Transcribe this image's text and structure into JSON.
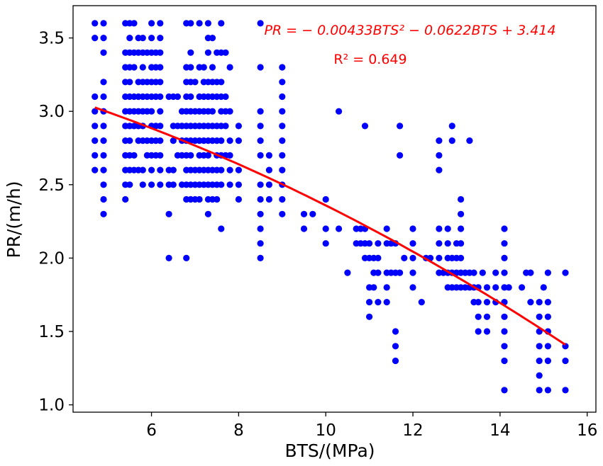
{
  "chart_data": {
    "type": "scatter",
    "xlabel": "BTS/(MPa)",
    "ylabel": "PR/(m/h)",
    "xlim": [
      4.2,
      16.2
    ],
    "ylim": [
      0.95,
      3.72
    ],
    "x_ticks": [
      6,
      8,
      10,
      12,
      14,
      16
    ],
    "y_ticks": [
      1.0,
      1.5,
      2.0,
      2.5,
      3.0,
      3.5
    ],
    "x_tick_labels": [
      "6",
      "8",
      "10",
      "12",
      "14",
      "16"
    ],
    "y_tick_labels": [
      "1.0",
      "1.5",
      "2.0",
      "2.5",
      "3.0",
      "3.5"
    ],
    "grid": false,
    "annotations": {
      "equation": "PR = − 0.00433BTS² − 0.0622BTS + 3.414",
      "r_squared": "R² = 0.649"
    },
    "colors": {
      "points": "#0000ff",
      "fit_line": "#ff0000",
      "annotation": "#ff0000"
    },
    "fit": {
      "a": -0.00433,
      "b": -0.0622,
      "c": 3.414,
      "x_range": [
        4.7,
        15.5
      ]
    },
    "points": [
      [
        4.7,
        3.6
      ],
      [
        4.7,
        3.5
      ],
      [
        4.7,
        3.1
      ],
      [
        4.7,
        3.0
      ],
      [
        4.7,
        2.9
      ],
      [
        4.7,
        2.8
      ],
      [
        4.7,
        2.7
      ],
      [
        4.7,
        2.6
      ],
      [
        4.9,
        3.6
      ],
      [
        4.9,
        3.5
      ],
      [
        4.9,
        3.4
      ],
      [
        4.9,
        3.2
      ],
      [
        4.9,
        3.1
      ],
      [
        4.9,
        3.0
      ],
      [
        4.9,
        2.9
      ],
      [
        4.9,
        2.8
      ],
      [
        4.9,
        2.7
      ],
      [
        4.9,
        2.6
      ],
      [
        4.9,
        2.5
      ],
      [
        4.9,
        2.4
      ],
      [
        4.9,
        2.3
      ],
      [
        5.4,
        3.6
      ],
      [
        5.4,
        3.4
      ],
      [
        5.4,
        3.3
      ],
      [
        5.4,
        3.2
      ],
      [
        5.4,
        3.1
      ],
      [
        5.4,
        3.0
      ],
      [
        5.4,
        2.9
      ],
      [
        5.4,
        2.8
      ],
      [
        5.4,
        2.7
      ],
      [
        5.4,
        2.6
      ],
      [
        5.4,
        2.5
      ],
      [
        5.4,
        2.4
      ],
      [
        5.5,
        3.6
      ],
      [
        5.5,
        3.5
      ],
      [
        5.5,
        3.4
      ],
      [
        5.5,
        3.3
      ],
      [
        5.5,
        3.2
      ],
      [
        5.5,
        3.1
      ],
      [
        5.5,
        3.0
      ],
      [
        5.5,
        2.9
      ],
      [
        5.5,
        2.8
      ],
      [
        5.5,
        2.7
      ],
      [
        5.5,
        2.6
      ],
      [
        5.5,
        2.5
      ],
      [
        5.6,
        3.6
      ],
      [
        5.6,
        3.4
      ],
      [
        5.6,
        3.3
      ],
      [
        5.6,
        3.1
      ],
      [
        5.6,
        3.0
      ],
      [
        5.6,
        2.9
      ],
      [
        5.6,
        2.7
      ],
      [
        5.6,
        2.6
      ],
      [
        5.7,
        3.5
      ],
      [
        5.7,
        3.4
      ],
      [
        5.7,
        3.2
      ],
      [
        5.7,
        3.1
      ],
      [
        5.7,
        3.0
      ],
      [
        5.7,
        2.9
      ],
      [
        5.7,
        2.8
      ],
      [
        5.7,
        2.6
      ],
      [
        5.8,
        3.5
      ],
      [
        5.8,
        3.4
      ],
      [
        5.8,
        3.3
      ],
      [
        5.8,
        3.2
      ],
      [
        5.8,
        3.1
      ],
      [
        5.8,
        3.0
      ],
      [
        5.8,
        2.9
      ],
      [
        5.8,
        2.8
      ],
      [
        5.8,
        2.6
      ],
      [
        5.8,
        2.5
      ],
      [
        5.9,
        3.4
      ],
      [
        5.9,
        3.2
      ],
      [
        5.9,
        3.1
      ],
      [
        5.9,
        3.0
      ],
      [
        5.9,
        2.8
      ],
      [
        5.9,
        2.7
      ],
      [
        6.0,
        3.6
      ],
      [
        6.0,
        3.5
      ],
      [
        6.0,
        3.4
      ],
      [
        6.0,
        3.3
      ],
      [
        6.0,
        3.2
      ],
      [
        6.0,
        3.1
      ],
      [
        6.0,
        3.0
      ],
      [
        6.0,
        2.9
      ],
      [
        6.0,
        2.8
      ],
      [
        6.0,
        2.7
      ],
      [
        6.0,
        2.6
      ],
      [
        6.0,
        2.5
      ],
      [
        6.1,
        3.4
      ],
      [
        6.1,
        3.3
      ],
      [
        6.1,
        3.2
      ],
      [
        6.1,
        3.1
      ],
      [
        6.1,
        2.9
      ],
      [
        6.1,
        2.8
      ],
      [
        6.1,
        2.7
      ],
      [
        6.2,
        3.6
      ],
      [
        6.2,
        3.5
      ],
      [
        6.2,
        3.4
      ],
      [
        6.2,
        3.3
      ],
      [
        6.2,
        3.2
      ],
      [
        6.2,
        3.1
      ],
      [
        6.2,
        3.0
      ],
      [
        6.2,
        2.9
      ],
      [
        6.2,
        2.8
      ],
      [
        6.2,
        2.7
      ],
      [
        6.2,
        2.6
      ],
      [
        6.2,
        2.5
      ],
      [
        6.4,
        3.1
      ],
      [
        6.4,
        2.6
      ],
      [
        6.4,
        2.5
      ],
      [
        6.4,
        2.3
      ],
      [
        6.4,
        2.0
      ],
      [
        6.5,
        3.1
      ],
      [
        6.5,
        2.9
      ],
      [
        6.5,
        2.8
      ],
      [
        6.5,
        2.6
      ],
      [
        6.5,
        2.5
      ],
      [
        6.6,
        3.1
      ],
      [
        6.6,
        2.9
      ],
      [
        6.6,
        2.7
      ],
      [
        6.7,
        3.0
      ],
      [
        6.7,
        2.9
      ],
      [
        6.7,
        2.8
      ],
      [
        6.7,
        2.7
      ],
      [
        6.7,
        2.5
      ],
      [
        6.8,
        3.6
      ],
      [
        6.8,
        3.3
      ],
      [
        6.8,
        3.2
      ],
      [
        6.8,
        3.1
      ],
      [
        6.8,
        3.0
      ],
      [
        6.8,
        2.9
      ],
      [
        6.8,
        2.8
      ],
      [
        6.8,
        2.7
      ],
      [
        6.8,
        2.6
      ],
      [
        6.8,
        2.5
      ],
      [
        6.8,
        2.4
      ],
      [
        6.8,
        2.0
      ],
      [
        6.9,
        3.6
      ],
      [
        6.9,
        3.4
      ],
      [
        6.9,
        3.3
      ],
      [
        6.9,
        3.2
      ],
      [
        6.9,
        3.1
      ],
      [
        6.9,
        3.0
      ],
      [
        6.9,
        2.9
      ],
      [
        6.9,
        2.8
      ],
      [
        6.9,
        2.7
      ],
      [
        6.9,
        2.6
      ],
      [
        6.9,
        2.5
      ],
      [
        6.9,
        2.4
      ],
      [
        7.0,
        3.2
      ],
      [
        7.0,
        3.0
      ],
      [
        7.0,
        2.9
      ],
      [
        7.0,
        2.8
      ],
      [
        7.0,
        2.6
      ],
      [
        7.0,
        2.5
      ],
      [
        7.0,
        2.4
      ],
      [
        7.1,
        3.6
      ],
      [
        7.1,
        3.3
      ],
      [
        7.1,
        3.1
      ],
      [
        7.1,
        3.0
      ],
      [
        7.1,
        2.9
      ],
      [
        7.1,
        2.8
      ],
      [
        7.1,
        2.7
      ],
      [
        7.1,
        2.6
      ],
      [
        7.1,
        2.5
      ],
      [
        7.1,
        2.4
      ],
      [
        7.2,
        3.3
      ],
      [
        7.2,
        3.2
      ],
      [
        7.2,
        3.1
      ],
      [
        7.2,
        3.0
      ],
      [
        7.2,
        2.9
      ],
      [
        7.2,
        2.8
      ],
      [
        7.2,
        2.7
      ],
      [
        7.2,
        2.6
      ],
      [
        7.2,
        2.5
      ],
      [
        7.3,
        3.6
      ],
      [
        7.3,
        3.5
      ],
      [
        7.3,
        3.4
      ],
      [
        7.3,
        3.2
      ],
      [
        7.3,
        3.1
      ],
      [
        7.3,
        3.0
      ],
      [
        7.3,
        2.9
      ],
      [
        7.3,
        2.8
      ],
      [
        7.3,
        2.7
      ],
      [
        7.3,
        2.6
      ],
      [
        7.3,
        2.5
      ],
      [
        7.3,
        2.4
      ],
      [
        7.3,
        2.3
      ],
      [
        7.4,
        3.5
      ],
      [
        7.4,
        3.3
      ],
      [
        7.4,
        3.2
      ],
      [
        7.4,
        3.1
      ],
      [
        7.4,
        3.0
      ],
      [
        7.4,
        2.9
      ],
      [
        7.4,
        2.8
      ],
      [
        7.4,
        2.6
      ],
      [
        7.4,
        2.5
      ],
      [
        7.4,
        2.4
      ],
      [
        7.5,
        3.4
      ],
      [
        7.5,
        3.2
      ],
      [
        7.5,
        3.1
      ],
      [
        7.5,
        2.9
      ],
      [
        7.5,
        2.8
      ],
      [
        7.5,
        2.7
      ],
      [
        7.5,
        2.6
      ],
      [
        7.5,
        2.5
      ],
      [
        7.5,
        2.4
      ],
      [
        7.6,
        3.6
      ],
      [
        7.6,
        3.4
      ],
      [
        7.6,
        3.2
      ],
      [
        7.6,
        3.1
      ],
      [
        7.6,
        3.0
      ],
      [
        7.6,
        2.9
      ],
      [
        7.6,
        2.8
      ],
      [
        7.6,
        2.7
      ],
      [
        7.6,
        2.6
      ],
      [
        7.6,
        2.5
      ],
      [
        7.6,
        2.2
      ],
      [
        7.7,
        3.4
      ],
      [
        7.7,
        3.1
      ],
      [
        7.7,
        3.0
      ],
      [
        7.7,
        2.9
      ],
      [
        7.7,
        2.7
      ],
      [
        7.8,
        3.3
      ],
      [
        7.8,
        3.0
      ],
      [
        7.8,
        2.8
      ],
      [
        7.8,
        2.7
      ],
      [
        7.8,
        2.6
      ],
      [
        7.8,
        2.5
      ],
      [
        8.0,
        2.9
      ],
      [
        8.0,
        2.8
      ],
      [
        8.0,
        2.6
      ],
      [
        8.0,
        2.5
      ],
      [
        8.0,
        2.4
      ],
      [
        8.5,
        3.6
      ],
      [
        8.5,
        3.3
      ],
      [
        8.5,
        3.0
      ],
      [
        8.5,
        2.9
      ],
      [
        8.5,
        2.8
      ],
      [
        8.5,
        2.7
      ],
      [
        8.5,
        2.5
      ],
      [
        8.5,
        2.4
      ],
      [
        8.5,
        2.3
      ],
      [
        8.5,
        2.2
      ],
      [
        8.5,
        2.1
      ],
      [
        8.5,
        2.0
      ],
      [
        8.7,
        2.7
      ],
      [
        8.7,
        2.6
      ],
      [
        8.7,
        2.5
      ],
      [
        8.7,
        2.4
      ],
      [
        9.0,
        3.3
      ],
      [
        9.0,
        3.2
      ],
      [
        9.0,
        3.1
      ],
      [
        9.0,
        3.0
      ],
      [
        9.0,
        2.9
      ],
      [
        9.0,
        2.8
      ],
      [
        9.0,
        2.7
      ],
      [
        9.0,
        2.6
      ],
      [
        9.0,
        2.5
      ],
      [
        9.0,
        2.4
      ],
      [
        9.0,
        2.3
      ],
      [
        9.5,
        2.3
      ],
      [
        9.5,
        2.2
      ],
      [
        9.7,
        2.3
      ],
      [
        10.0,
        2.4
      ],
      [
        10.0,
        2.2
      ],
      [
        10.0,
        2.1
      ],
      [
        10.3,
        3.0
      ],
      [
        10.3,
        2.2
      ],
      [
        10.5,
        1.9
      ],
      [
        10.7,
        2.2
      ],
      [
        10.7,
        2.1
      ],
      [
        10.8,
        2.2
      ],
      [
        10.8,
        2.1
      ],
      [
        10.9,
        2.9
      ],
      [
        10.9,
        2.2
      ],
      [
        10.9,
        2.1
      ],
      [
        10.9,
        2.0
      ],
      [
        11.0,
        2.1
      ],
      [
        11.0,
        2.0
      ],
      [
        11.0,
        1.8
      ],
      [
        11.0,
        1.7
      ],
      [
        11.0,
        1.6
      ],
      [
        11.1,
        2.0
      ],
      [
        11.1,
        1.9
      ],
      [
        11.1,
        1.8
      ],
      [
        11.2,
        2.1
      ],
      [
        11.2,
        2.0
      ],
      [
        11.2,
        1.9
      ],
      [
        11.2,
        1.7
      ],
      [
        11.4,
        2.2
      ],
      [
        11.4,
        2.1
      ],
      [
        11.4,
        1.9
      ],
      [
        11.4,
        1.8
      ],
      [
        11.4,
        1.7
      ],
      [
        11.5,
        2.1
      ],
      [
        11.5,
        1.9
      ],
      [
        11.6,
        2.1
      ],
      [
        11.6,
        1.9
      ],
      [
        11.6,
        1.5
      ],
      [
        11.6,
        1.4
      ],
      [
        11.6,
        1.3
      ],
      [
        11.7,
        2.9
      ],
      [
        11.7,
        2.7
      ],
      [
        11.7,
        1.9
      ],
      [
        11.8,
        2.0
      ],
      [
        12.0,
        2.2
      ],
      [
        12.0,
        2.1
      ],
      [
        12.0,
        2.0
      ],
      [
        12.0,
        1.9
      ],
      [
        12.0,
        1.8
      ],
      [
        12.2,
        1.7
      ],
      [
        12.3,
        2.0
      ],
      [
        12.4,
        2.0
      ],
      [
        12.6,
        2.8
      ],
      [
        12.6,
        2.7
      ],
      [
        12.6,
        2.6
      ],
      [
        12.6,
        2.2
      ],
      [
        12.6,
        2.1
      ],
      [
        12.6,
        2.0
      ],
      [
        12.6,
        1.9
      ],
      [
        12.7,
        1.9
      ],
      [
        12.8,
        2.2
      ],
      [
        12.8,
        2.1
      ],
      [
        12.8,
        2.0
      ],
      [
        12.8,
        1.9
      ],
      [
        12.8,
        1.8
      ],
      [
        12.9,
        2.9
      ],
      [
        12.9,
        2.8
      ],
      [
        12.9,
        2.0
      ],
      [
        12.9,
        1.9
      ],
      [
        12.9,
        1.8
      ],
      [
        13.0,
        2.1
      ],
      [
        13.0,
        2.0
      ],
      [
        13.0,
        1.9
      ],
      [
        13.0,
        1.8
      ],
      [
        13.1,
        2.4
      ],
      [
        13.1,
        2.3
      ],
      [
        13.1,
        2.2
      ],
      [
        13.1,
        2.1
      ],
      [
        13.1,
        2.0
      ],
      [
        13.1,
        1.9
      ],
      [
        13.1,
        1.8
      ],
      [
        13.2,
        1.9
      ],
      [
        13.2,
        1.8
      ],
      [
        13.3,
        2.8
      ],
      [
        13.3,
        1.9
      ],
      [
        13.3,
        1.8
      ],
      [
        13.4,
        1.9
      ],
      [
        13.4,
        1.8
      ],
      [
        13.4,
        1.7
      ],
      [
        13.5,
        1.8
      ],
      [
        13.5,
        1.7
      ],
      [
        13.5,
        1.6
      ],
      [
        13.5,
        1.5
      ],
      [
        13.6,
        1.9
      ],
      [
        13.7,
        1.8
      ],
      [
        13.7,
        1.7
      ],
      [
        13.7,
        1.6
      ],
      [
        13.7,
        1.5
      ],
      [
        13.9,
        1.9
      ],
      [
        13.9,
        1.8
      ],
      [
        13.9,
        1.7
      ],
      [
        14.1,
        2.2
      ],
      [
        14.1,
        2.1
      ],
      [
        14.1,
        2.0
      ],
      [
        14.1,
        1.9
      ],
      [
        14.1,
        1.8
      ],
      [
        14.1,
        1.7
      ],
      [
        14.1,
        1.6
      ],
      [
        14.1,
        1.5
      ],
      [
        14.1,
        1.4
      ],
      [
        14.1,
        1.3
      ],
      [
        14.1,
        1.1
      ],
      [
        14.2,
        1.8
      ],
      [
        14.5,
        1.8
      ],
      [
        14.6,
        1.9
      ],
      [
        14.7,
        1.9
      ],
      [
        14.7,
        1.7
      ],
      [
        14.9,
        1.7
      ],
      [
        14.9,
        1.6
      ],
      [
        14.9,
        1.5
      ],
      [
        14.9,
        1.4
      ],
      [
        14.9,
        1.3
      ],
      [
        14.9,
        1.2
      ],
      [
        14.9,
        1.1
      ],
      [
        15.0,
        1.8
      ],
      [
        15.1,
        1.9
      ],
      [
        15.1,
        1.7
      ],
      [
        15.1,
        1.6
      ],
      [
        15.1,
        1.5
      ],
      [
        15.1,
        1.4
      ],
      [
        15.1,
        1.3
      ],
      [
        15.1,
        1.1
      ],
      [
        15.5,
        1.9
      ],
      [
        15.5,
        1.4
      ],
      [
        15.5,
        1.3
      ],
      [
        15.5,
        1.1
      ]
    ]
  }
}
